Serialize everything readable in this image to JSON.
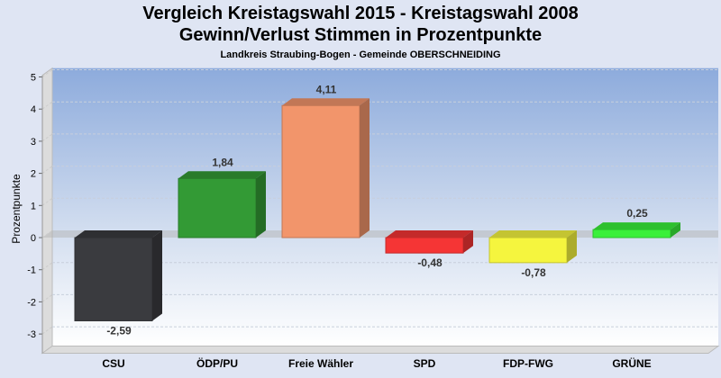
{
  "chart_data": {
    "type": "bar",
    "title": "Vergleich Kreistagswahl 2015 - Kreistagswahl 2008",
    "subtitle": "Gewinn/Verlust Stimmen in Prozentpunkte",
    "subsubtitle": "Landkreis Straubing-Bogen - Gemeinde OBERSCHNEIDING",
    "xlabel": "",
    "ylabel": "Prozentpunkte",
    "ylim": [
      -3.6,
      5.05
    ],
    "yticks": [
      5,
      4,
      3,
      2,
      1,
      0,
      -1,
      -2,
      -3
    ],
    "categories": [
      "CSU",
      "ÖDP/PU",
      "Freie Wähler",
      "SPD",
      "FDP-FWG",
      "GRÜNE"
    ],
    "values": [
      -2.59,
      1.84,
      4.11,
      -0.48,
      -0.78,
      0.25
    ],
    "labels": [
      "-2,59",
      "1,84",
      "4,11",
      "-0,48",
      "-0,78",
      "0,25"
    ],
    "colors": [
      "#3a3b3f",
      "#339a35",
      "#f2956b",
      "#f53535",
      "#f5f53e",
      "#3af03a"
    ],
    "grid": true
  }
}
